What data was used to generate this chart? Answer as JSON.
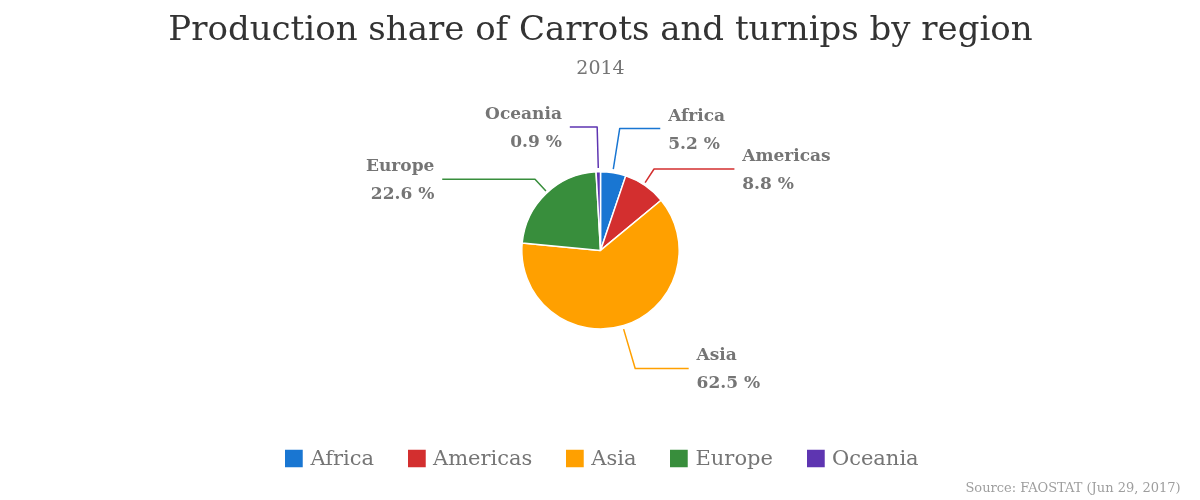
{
  "chart_data": {
    "type": "pie",
    "title": "Production share of Carrots and turnips by region",
    "subtitle": "2014",
    "categories": [
      "Africa",
      "Americas",
      "Asia",
      "Europe",
      "Oceania"
    ],
    "values": [
      5.2,
      8.8,
      62.5,
      22.6,
      0.9
    ],
    "colors": [
      "#1976d2",
      "#d32f2f",
      "#ffa000",
      "#388e3c",
      "#5e35b1"
    ],
    "value_labels": [
      "5.2 %",
      "8.8 %",
      "62.5 %",
      "22.6 %",
      "0.9 %"
    ],
    "legend": "bottom",
    "annotations": [
      "Source: FAOSTAT (Jun 29, 2017)"
    ]
  }
}
